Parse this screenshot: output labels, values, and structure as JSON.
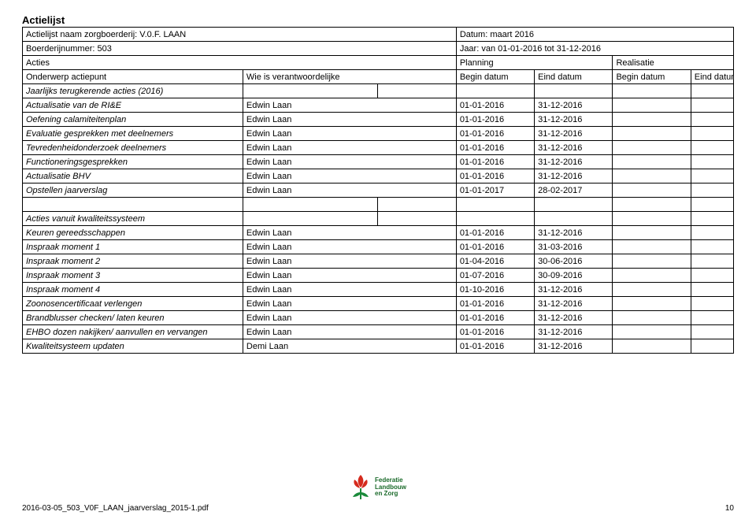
{
  "title": "Actielijst",
  "colWidths": [
    "31%",
    "19%",
    "11%",
    "11%",
    "11%",
    "11%",
    "6%"
  ],
  "rows": [
    [
      {
        "t": "Actielijst naam zorgboerderij: V.0.F. LAAN",
        "span": 3
      },
      {
        "t": "Datum: maart 2016",
        "span": 4
      }
    ],
    [
      {
        "t": "Boerderijnummer: 503",
        "span": 3
      },
      {
        "t": "Jaar: van 01-01-2016 tot 31-12-2016",
        "span": 4
      }
    ],
    [
      {
        "t": "Acties",
        "span": 3
      },
      {
        "t": "Planning",
        "span": 2
      },
      {
        "t": "Realisatie",
        "span": 2
      }
    ],
    [
      {
        "t": "Onderwerp actiepunt"
      },
      {
        "t": "Wie is verantwoordelijke",
        "span": 2
      },
      {
        "t": "Begin datum"
      },
      {
        "t": "Eind datum"
      },
      {
        "t": "Begin datum"
      },
      {
        "t": "Eind datum"
      }
    ],
    [
      {
        "t": "Jaarlijks terugkerende acties (2016)",
        "italic": true
      },
      {
        "t": ""
      },
      {
        "t": ""
      },
      {
        "t": ""
      },
      {
        "t": ""
      },
      {
        "t": ""
      },
      {
        "t": ""
      }
    ],
    [
      {
        "t": "Actualisatie van de RI&E",
        "italic": true
      },
      {
        "t": "Edwin Laan",
        "span": 2
      },
      {
        "t": "01-01-2016"
      },
      {
        "t": "31-12-2016"
      },
      {
        "t": ""
      },
      {
        "t": ""
      }
    ],
    [
      {
        "t": "Oefening calamiteitenplan",
        "italic": true
      },
      {
        "t": "Edwin Laan",
        "span": 2
      },
      {
        "t": "01-01-2016"
      },
      {
        "t": "31-12-2016"
      },
      {
        "t": ""
      },
      {
        "t": ""
      }
    ],
    [
      {
        "t": "Evaluatie gesprekken met deelnemers",
        "italic": true
      },
      {
        "t": "Edwin Laan",
        "span": 2
      },
      {
        "t": "01-01-2016"
      },
      {
        "t": "31-12-2016"
      },
      {
        "t": ""
      },
      {
        "t": ""
      }
    ],
    [
      {
        "t": "Tevredenheidonderzoek deelnemers",
        "italic": true
      },
      {
        "t": "Edwin Laan",
        "span": 2
      },
      {
        "t": "01-01-2016"
      },
      {
        "t": "31-12-2016"
      },
      {
        "t": ""
      },
      {
        "t": ""
      }
    ],
    [
      {
        "t": "Functioneringsgesprekken",
        "italic": true
      },
      {
        "t": "Edwin Laan",
        "span": 2
      },
      {
        "t": "01-01-2016"
      },
      {
        "t": "31-12-2016"
      },
      {
        "t": ""
      },
      {
        "t": ""
      }
    ],
    [
      {
        "t": "Actualisatie BHV",
        "italic": true
      },
      {
        "t": "Edwin Laan",
        "span": 2
      },
      {
        "t": "01-01-2016"
      },
      {
        "t": "31-12-2016"
      },
      {
        "t": ""
      },
      {
        "t": ""
      }
    ],
    [
      {
        "t": "Opstellen jaarverslag",
        "italic": true
      },
      {
        "t": "Edwin Laan",
        "span": 2
      },
      {
        "t": "01-01-2017"
      },
      {
        "t": "28-02-2017"
      },
      {
        "t": ""
      },
      {
        "t": ""
      }
    ],
    [
      {
        "t": ""
      },
      {
        "t": ""
      },
      {
        "t": ""
      },
      {
        "t": ""
      },
      {
        "t": ""
      },
      {
        "t": ""
      },
      {
        "t": ""
      }
    ],
    [
      {
        "t": "Acties vanuit kwaliteitssysteem",
        "italic": true
      },
      {
        "t": ""
      },
      {
        "t": ""
      },
      {
        "t": ""
      },
      {
        "t": ""
      },
      {
        "t": ""
      },
      {
        "t": ""
      }
    ],
    [
      {
        "t": "Keuren gereedsschappen",
        "italic": true
      },
      {
        "t": "Edwin Laan",
        "span": 2
      },
      {
        "t": "01-01-2016"
      },
      {
        "t": "31-12-2016"
      },
      {
        "t": ""
      },
      {
        "t": ""
      }
    ],
    [
      {
        "t": "Inspraak moment 1",
        "italic": true
      },
      {
        "t": "Edwin Laan",
        "span": 2
      },
      {
        "t": "01-01-2016"
      },
      {
        "t": "31-03-2016"
      },
      {
        "t": ""
      },
      {
        "t": ""
      }
    ],
    [
      {
        "t": "Inspraak  moment 2",
        "italic": true
      },
      {
        "t": "Edwin Laan",
        "span": 2
      },
      {
        "t": "01-04-2016"
      },
      {
        "t": "30-06-2016"
      },
      {
        "t": ""
      },
      {
        "t": ""
      }
    ],
    [
      {
        "t": "Inspraak moment 3",
        "italic": true
      },
      {
        "t": "Edwin Laan",
        "span": 2
      },
      {
        "t": "01-07-2016"
      },
      {
        "t": "30-09-2016"
      },
      {
        "t": ""
      },
      {
        "t": ""
      }
    ],
    [
      {
        "t": "Inspraak moment 4",
        "italic": true
      },
      {
        "t": "Edwin Laan",
        "span": 2
      },
      {
        "t": "01-10-2016"
      },
      {
        "t": "31-12-2016"
      },
      {
        "t": ""
      },
      {
        "t": ""
      }
    ],
    [
      {
        "t": "Zoonosencertificaat verlengen",
        "italic": true
      },
      {
        "t": "Edwin Laan",
        "span": 2
      },
      {
        "t": "01-01-2016"
      },
      {
        "t": "31-12-2016"
      },
      {
        "t": ""
      },
      {
        "t": ""
      }
    ],
    [
      {
        "t": "Brandblusser checken/ laten keuren",
        "italic": true
      },
      {
        "t": "Edwin Laan",
        "span": 2
      },
      {
        "t": "01-01-2016"
      },
      {
        "t": "31-12-2016"
      },
      {
        "t": ""
      },
      {
        "t": ""
      }
    ],
    [
      {
        "t": "EHBO dozen nakijken/ aanvullen en vervangen",
        "italic": true
      },
      {
        "t": "Edwin Laan",
        "span": 2
      },
      {
        "t": "01-01-2016"
      },
      {
        "t": "31-12-2016"
      },
      {
        "t": ""
      },
      {
        "t": ""
      }
    ],
    [
      {
        "t": "Kwaliteitsysteem updaten",
        "italic": true
      },
      {
        "t": "Demi Laan",
        "span": 2
      },
      {
        "t": "01-01-2016"
      },
      {
        "t": "31-12-2016"
      },
      {
        "t": ""
      },
      {
        "t": ""
      }
    ]
  ],
  "logoColors": {
    "red": "#d52b1e",
    "green": "#1a8a3a",
    "darkgreen": "#14632a"
  },
  "logoText": "Federatie\nLandbouw\nen Zorg",
  "footerLeft": "2016-03-05_503_V0F_LAAN_jaarverslag_2015-1.pdf",
  "footerRight": "10"
}
